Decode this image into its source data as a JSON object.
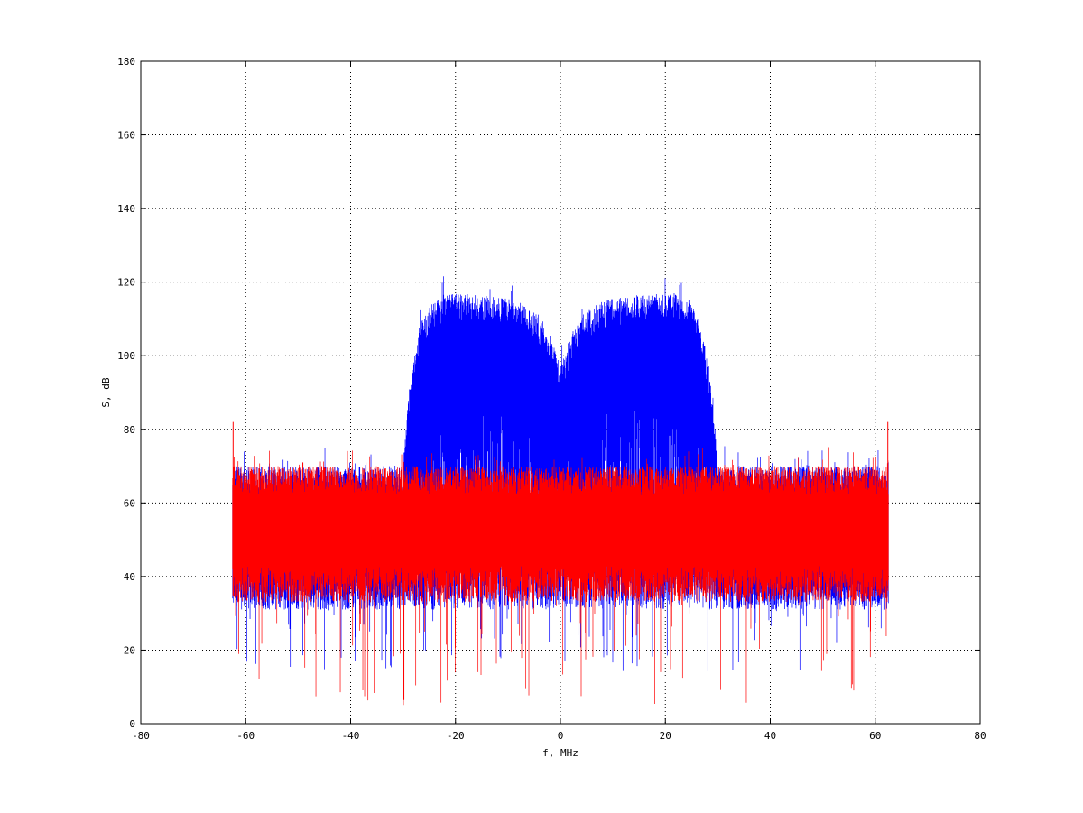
{
  "chart_data": {
    "type": "line",
    "title": "",
    "xlabel": "f, MHz",
    "ylabel": "S, dB",
    "xlim": [
      -80,
      80
    ],
    "ylim": [
      0,
      180
    ],
    "xticks": [
      -80,
      -60,
      -40,
      -20,
      0,
      20,
      40,
      60,
      80
    ],
    "yticks": [
      0,
      20,
      40,
      60,
      80,
      100,
      120,
      140,
      160,
      180
    ],
    "grid": true,
    "series": [
      {
        "color": "#0000ff",
        "band_x": [
          -62.5,
          62.5
        ],
        "upper_envelope": {
          "x": [
            -62.5,
            -30,
            -29,
            -27,
            -25,
            -22,
            -18,
            -12,
            -8,
            -4,
            -2,
            0,
            2,
            4,
            8,
            12,
            18,
            22,
            25,
            27,
            29,
            30,
            62.5
          ],
          "y": [
            70,
            70,
            90,
            108,
            114,
            117,
            117,
            116,
            115,
            111,
            106,
            97,
            106,
            111,
            115,
            116,
            117,
            117,
            114,
            108,
            90,
            70,
            70
          ]
        },
        "inner_envelope": {
          "x": [
            -30,
            -27,
            -22,
            -18,
            -12,
            -8,
            -4,
            -2,
            0,
            2,
            4,
            8,
            12,
            18,
            22,
            27,
            30
          ],
          "y": [
            68,
            80,
            88,
            88,
            88,
            86,
            80,
            74,
            70,
            74,
            80,
            86,
            88,
            88,
            88,
            80,
            68
          ]
        },
        "lower_floor": 36,
        "spike_minimum": 14
      },
      {
        "color": "#ff0000",
        "band_x": [
          -62.5,
          62.5
        ],
        "upper_envelope": {
          "x": [
            -62.5,
            62.5
          ],
          "y": [
            70,
            70
          ]
        },
        "edge_spikes": [
          {
            "x": -62.4,
            "y": 82
          },
          {
            "x": 62.4,
            "y": 82
          }
        ],
        "lower_floor": 38,
        "spike_minimum": 5
      }
    ]
  }
}
